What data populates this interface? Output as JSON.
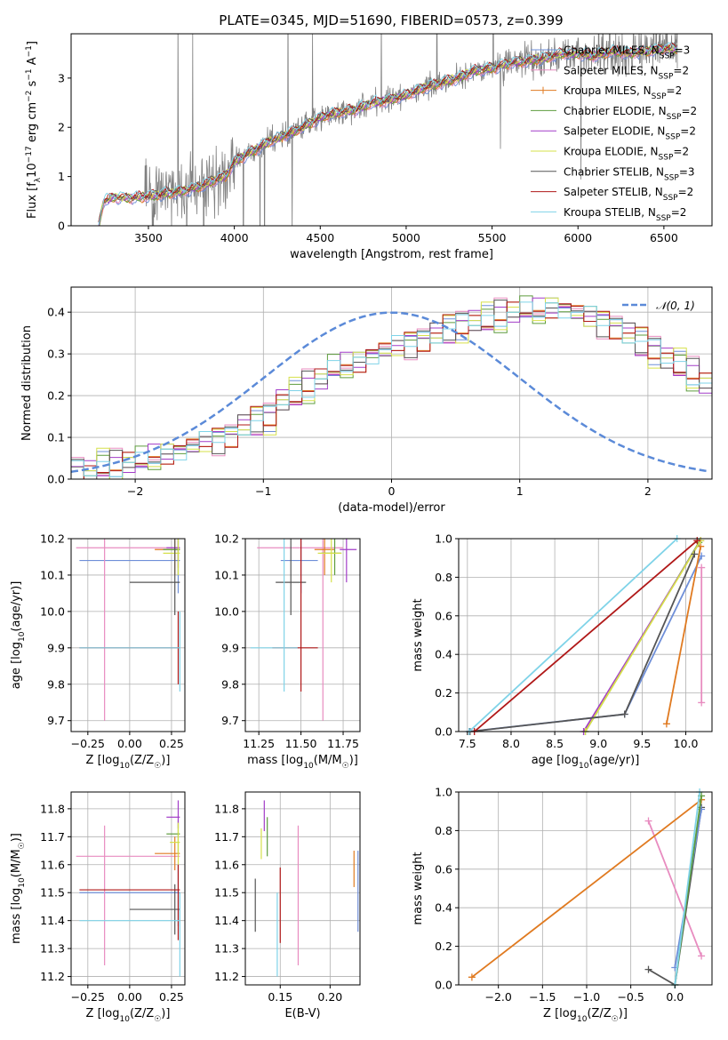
{
  "page_title": "PLATE=0345, MJD=51690, FIBERID=0573, z=0.399",
  "colors": {
    "Chabrier MILES": "#6f8fd8",
    "Salpeter MILES": "#e88cc0",
    "Kroupa MILES": "#e07a20",
    "Chabrier ELODIE": "#5d9c3d",
    "Salpeter ELODIE": "#a23cc8",
    "Kroupa ELODIE": "#d6e04a",
    "Chabrier STELIB": "#555555",
    "Salpeter STELIB": "#b01818",
    "Kroupa STELIB": "#7fd3e8",
    "data": "#808080",
    "gauss": "#5b8ad8"
  },
  "chart_data": [
    {
      "id": "spectrum",
      "type": "line",
      "title": "PLATE=0345, MJD=51690, FIBERID=0573, z=0.399",
      "xlabel": "wavelength [Angstrom, rest frame]",
      "ylabel": "Flux [f_λ 10^-17 erg cm^-2 s^-1 A^-1]",
      "xlim": [
        3050,
        6780
      ],
      "ylim": [
        0,
        3.9
      ],
      "xticks": [
        "3500",
        "4000",
        "4500",
        "5000",
        "5500",
        "6000",
        "6500"
      ],
      "yticks": [
        "0",
        "1",
        "2",
        "3"
      ],
      "grid": false,
      "legend_position": "top-right",
      "legend": [
        "Chabrier MILES, N_SSP=3",
        "Salpeter MILES, N_SSP=2",
        "Kroupa MILES, N_SSP=2",
        "Chabrier ELODIE, N_SSP=2",
        "Salpeter ELODIE, N_SSP=2",
        "Kroupa ELODIE, N_SSP=2",
        "Chabrier STELIB, N_SSP=3",
        "Salpeter STELIB, N_SSP=2",
        "Kroupa STELIB, N_SSP=2"
      ],
      "continuum": {
        "x": [
          3210,
          3240,
          3300,
          3400,
          3500,
          3600,
          3700,
          3800,
          3900,
          3950,
          4000,
          4100,
          4200,
          4300,
          4400,
          4500,
          4600,
          4700,
          4800,
          4900,
          5000,
          5100,
          5200,
          5300,
          5400,
          5500,
          5600,
          5700,
          5800,
          5900,
          6000,
          6100,
          6200,
          6300,
          6400,
          6500,
          6580
        ],
        "y": [
          0,
          0.5,
          0.58,
          0.56,
          0.6,
          0.65,
          0.7,
          0.8,
          0.95,
          1.0,
          1.3,
          1.5,
          1.7,
          1.85,
          2.0,
          2.2,
          2.3,
          2.35,
          2.5,
          2.55,
          2.65,
          2.8,
          2.9,
          3.0,
          3.15,
          3.2,
          3.3,
          3.35,
          3.4,
          3.5,
          3.5,
          3.45,
          3.55,
          3.5,
          3.55,
          3.6,
          3.6
        ]
      }
    },
    {
      "id": "residuals",
      "type": "line",
      "xlabel": "(data-model)/error",
      "ylabel": "Normed distribution",
      "xlim": [
        -2.5,
        2.5
      ],
      "ylim": [
        0,
        0.46
      ],
      "xticks": [
        "−2",
        "−1",
        "0",
        "1",
        "2"
      ],
      "yticks": [
        "0.0",
        "0.1",
        "0.2",
        "0.3",
        "0.4"
      ],
      "grid": true,
      "legend": [
        "𝒩(0, 1)"
      ],
      "legend_position": "top-right",
      "bin_width": 0.1,
      "bin_start": -2.5,
      "hist_base": [
        0.02,
        0.02,
        0.03,
        0.03,
        0.04,
        0.04,
        0.05,
        0.06,
        0.07,
        0.08,
        0.09,
        0.1,
        0.11,
        0.13,
        0.14,
        0.15,
        0.19,
        0.2,
        0.22,
        0.24,
        0.26,
        0.27,
        0.28,
        0.3,
        0.31,
        0.32,
        0.33,
        0.34,
        0.35,
        0.36,
        0.37,
        0.38,
        0.38,
        0.39,
        0.4,
        0.4,
        0.4,
        0.41,
        0.41,
        0.4,
        0.39,
        0.38,
        0.37,
        0.35,
        0.33,
        0.31,
        0.29,
        0.27,
        0.25,
        0.23,
        0.21,
        0.19,
        0.17,
        0.15,
        0.13,
        0.12,
        0.1,
        0.09,
        0.08,
        0.07,
        0.06,
        0.05,
        0.045,
        0.04,
        0.035,
        0.03,
        0.03,
        0.025,
        0.02,
        0.02
      ],
      "gauss_mean": 0,
      "gauss_sigma": 1
    },
    {
      "id": "Z-age",
      "type": "scatter",
      "xlabel": "Z [log10(Z/Z☉)]",
      "ylabel": "age [log10(age/yr)]",
      "xlim": [
        -0.35,
        0.33
      ],
      "ylim": [
        9.67,
        10.2
      ],
      "xticks": [
        "−0.25",
        "0.00",
        "0.25"
      ],
      "yticks": [
        "9.7",
        "9.8",
        "9.9",
        "10.0",
        "10.1",
        "10.2"
      ],
      "grid": true,
      "points": [
        {
          "m": "Chabrier MILES",
          "x": 0.29,
          "y": 10.14,
          "ex": [
            -0.3,
            0.3
          ],
          "ey": [
            10.05,
            10.2
          ]
        },
        {
          "m": "Salpeter MILES",
          "x": -0.15,
          "y": 10.175,
          "ex": [
            -0.32,
            0.3
          ],
          "ey": [
            9.7,
            10.2
          ]
        },
        {
          "m": "Kroupa MILES",
          "x": 0.27,
          "y": 10.17,
          "ex": [
            0.15,
            0.3
          ],
          "ey": [
            10.1,
            10.2
          ]
        },
        {
          "m": "Chabrier ELODIE",
          "x": 0.29,
          "y": 10.17,
          "ex": [
            0.2,
            0.3
          ],
          "ey": [
            10.1,
            10.2
          ]
        },
        {
          "m": "Salpeter ELODIE",
          "x": 0.29,
          "y": 10.175,
          "ex": [
            0.22,
            0.3
          ],
          "ey": [
            10.12,
            10.2
          ]
        },
        {
          "m": "Kroupa ELODIE",
          "x": 0.29,
          "y": 10.16,
          "ex": [
            0.2,
            0.3
          ],
          "ey": [
            10.1,
            10.2
          ]
        },
        {
          "m": "Chabrier STELIB",
          "x": 0.27,
          "y": 10.08,
          "ex": [
            0.0,
            0.3
          ],
          "ey": [
            9.99,
            10.2
          ]
        },
        {
          "m": "Salpeter STELIB",
          "x": 0.29,
          "y": 9.9,
          "ex": [
            -0.3,
            0.3
          ],
          "ey": [
            9.8,
            10.0
          ]
        },
        {
          "m": "Kroupa STELIB",
          "x": 0.3,
          "y": 9.9,
          "ex": [
            -0.3,
            0.3
          ],
          "ey": [
            9.78,
            10.0
          ]
        }
      ]
    },
    {
      "id": "mass-age",
      "type": "scatter",
      "xlabel": "mass [log10(M/M☉)]",
      "ylabel": "",
      "xlim": [
        11.17,
        11.85
      ],
      "ylim": [
        9.67,
        10.2
      ],
      "xticks": [
        "11.25",
        "11.50",
        "11.75"
      ],
      "yticks": [
        "9.7",
        "9.8",
        "9.9",
        "10.0",
        "10.1",
        "10.2"
      ],
      "grid": true,
      "points": [
        {
          "m": "Chabrier MILES",
          "x": 11.5,
          "y": 10.14,
          "ex": [
            11.38,
            11.6
          ],
          "ey": [
            10.05,
            10.2
          ]
        },
        {
          "m": "Salpeter MILES",
          "x": 11.63,
          "y": 10.175,
          "ex": [
            11.24,
            11.75
          ],
          "ey": [
            9.7,
            10.2
          ]
        },
        {
          "m": "Kroupa MILES",
          "x": 11.64,
          "y": 10.17,
          "ex": [
            11.58,
            11.7
          ],
          "ey": [
            10.1,
            10.2
          ]
        },
        {
          "m": "Chabrier ELODIE",
          "x": 11.7,
          "y": 10.16,
          "ex": [
            11.62,
            11.74
          ],
          "ey": [
            10.1,
            10.2
          ]
        },
        {
          "m": "Salpeter ELODIE",
          "x": 11.77,
          "y": 10.17,
          "ex": [
            11.73,
            11.83
          ],
          "ey": [
            10.08,
            10.2
          ]
        },
        {
          "m": "Kroupa ELODIE",
          "x": 11.68,
          "y": 10.16,
          "ex": [
            11.6,
            11.74
          ],
          "ey": [
            10.08,
            10.2
          ]
        },
        {
          "m": "Chabrier STELIB",
          "x": 11.44,
          "y": 10.08,
          "ex": [
            11.35,
            11.53
          ],
          "ey": [
            9.99,
            10.2
          ]
        },
        {
          "m": "Salpeter STELIB",
          "x": 11.5,
          "y": 9.9,
          "ex": [
            11.33,
            11.6
          ],
          "ey": [
            9.78,
            10.2
          ]
        },
        {
          "m": "Kroupa STELIB",
          "x": 11.4,
          "y": 9.9,
          "ex": [
            11.2,
            11.48
          ],
          "ey": [
            9.78,
            10.2
          ]
        }
      ]
    },
    {
      "id": "age-weight",
      "type": "line",
      "xlabel": "age [log10(age/yr)]",
      "ylabel": "mass weight",
      "xlim": [
        7.4,
        10.3
      ],
      "ylim": [
        0,
        1.0
      ],
      "xticks": [
        "7.5",
        "8.0",
        "8.5",
        "9.0",
        "9.5",
        "10.0"
      ],
      "yticks": [
        "0.0",
        "0.2",
        "0.4",
        "0.6",
        "0.8",
        "1.0"
      ],
      "grid": true,
      "series": [
        {
          "m": "Chabrier MILES",
          "x": [
            7.52,
            9.3,
            10.18
          ],
          "y": [
            0.0,
            0.09,
            0.91
          ]
        },
        {
          "m": "Salpeter MILES",
          "x": [
            10.18,
            10.18
          ],
          "y": [
            0.15,
            0.85
          ]
        },
        {
          "m": "Kroupa MILES",
          "x": [
            9.78,
            10.17
          ],
          "y": [
            0.04,
            0.96
          ]
        },
        {
          "m": "Chabrier ELODIE",
          "x": [
            8.85,
            10.15
          ],
          "y": [
            0.0,
            0.98
          ]
        },
        {
          "m": "Salpeter ELODIE",
          "x": [
            8.83,
            10.17
          ],
          "y": [
            0.0,
            0.99
          ]
        },
        {
          "m": "Kroupa ELODIE",
          "x": [
            8.85,
            10.17
          ],
          "y": [
            0.0,
            0.99
          ]
        },
        {
          "m": "Chabrier STELIB",
          "x": [
            7.53,
            9.3,
            10.1
          ],
          "y": [
            0.0,
            0.09,
            0.92
          ]
        },
        {
          "m": "Salpeter STELIB",
          "x": [
            7.58,
            10.13
          ],
          "y": [
            0.0,
            0.99
          ]
        },
        {
          "m": "Kroupa STELIB",
          "x": [
            7.52,
            9.9
          ],
          "y": [
            0.0,
            1.0
          ]
        }
      ]
    },
    {
      "id": "Z-mass",
      "type": "scatter",
      "xlabel": "Z [log10(Z/Z☉)]",
      "ylabel": "mass [log10(M/M☉)]",
      "xlim": [
        -0.35,
        0.33
      ],
      "ylim": [
        11.17,
        11.86
      ],
      "xticks": [
        "−0.25",
        "0.00",
        "0.25"
      ],
      "yticks": [
        "11.2",
        "11.3",
        "11.4",
        "11.5",
        "11.6",
        "11.7",
        "11.8"
      ],
      "grid": true,
      "points": [
        {
          "m": "Chabrier MILES",
          "x": 0.29,
          "y": 11.5,
          "ex": [
            -0.3,
            0.3
          ],
          "ey": [
            11.38,
            11.6
          ]
        },
        {
          "m": "Salpeter MILES",
          "x": -0.15,
          "y": 11.63,
          "ex": [
            -0.32,
            0.3
          ],
          "ey": [
            11.24,
            11.74
          ]
        },
        {
          "m": "Kroupa MILES",
          "x": 0.27,
          "y": 11.64,
          "ex": [
            0.15,
            0.3
          ],
          "ey": [
            11.58,
            11.7
          ]
        },
        {
          "m": "Chabrier ELODIE",
          "x": 0.29,
          "y": 11.71,
          "ex": [
            0.22,
            0.3
          ],
          "ey": [
            11.64,
            11.76
          ]
        },
        {
          "m": "Salpeter ELODIE",
          "x": 0.29,
          "y": 11.77,
          "ex": [
            0.22,
            0.3
          ],
          "ey": [
            11.73,
            11.83
          ]
        },
        {
          "m": "Kroupa ELODIE",
          "x": 0.29,
          "y": 11.68,
          "ex": [
            0.24,
            0.3
          ],
          "ey": [
            11.6,
            11.75
          ]
        },
        {
          "m": "Chabrier STELIB",
          "x": 0.27,
          "y": 11.44,
          "ex": [
            0.0,
            0.3
          ],
          "ey": [
            11.35,
            11.53
          ]
        },
        {
          "m": "Salpeter STELIB",
          "x": 0.29,
          "y": 11.51,
          "ex": [
            -0.3,
            0.3
          ],
          "ey": [
            11.33,
            11.6
          ]
        },
        {
          "m": "Kroupa STELIB",
          "x": 0.3,
          "y": 11.4,
          "ex": [
            -0.3,
            0.3
          ],
          "ey": [
            11.2,
            11.5
          ]
        }
      ]
    },
    {
      "id": "ebv-mass",
      "type": "scatter",
      "xlabel": "E(B-V)",
      "ylabel": "",
      "xlim": [
        0.115,
        0.23
      ],
      "ylim": [
        11.17,
        11.86
      ],
      "xticks": [
        "0.15",
        "0.20"
      ],
      "yticks": [
        "11.2",
        "11.3",
        "11.4",
        "11.5",
        "11.6",
        "11.7",
        "11.8"
      ],
      "grid": true,
      "points": [
        {
          "m": "Chabrier MILES",
          "x": 0.228,
          "y": 11.5,
          "ey": [
            11.36,
            11.65
          ]
        },
        {
          "m": "Salpeter MILES",
          "x": 0.168,
          "y": 11.49,
          "ey": [
            11.24,
            11.74
          ]
        },
        {
          "m": "Kroupa MILES",
          "x": 0.224,
          "y": 11.58,
          "ey": [
            11.52,
            11.65
          ]
        },
        {
          "m": "Chabrier ELODIE",
          "x": 0.137,
          "y": 11.7,
          "ey": [
            11.63,
            11.77
          ]
        },
        {
          "m": "Salpeter ELODIE",
          "x": 0.134,
          "y": 11.77,
          "ey": [
            11.72,
            11.83
          ]
        },
        {
          "m": "Kroupa ELODIE",
          "x": 0.131,
          "y": 11.68,
          "ey": [
            11.62,
            11.73
          ]
        },
        {
          "m": "Chabrier STELIB",
          "x": 0.125,
          "y": 11.45,
          "ey": [
            11.36,
            11.55
          ]
        },
        {
          "m": "Salpeter STELIB",
          "x": 0.15,
          "y": 11.45,
          "ey": [
            11.32,
            11.59
          ]
        },
        {
          "m": "Kroupa STELIB",
          "x": 0.147,
          "y": 11.33,
          "ey": [
            11.2,
            11.5
          ]
        }
      ]
    },
    {
      "id": "Z-weight",
      "type": "line",
      "xlabel": "Z [log10(Z/Z☉)]",
      "ylabel": "mass weight",
      "xlim": [
        -2.45,
        0.42
      ],
      "ylim": [
        0,
        1.0
      ],
      "xticks": [
        "−2.0",
        "−1.5",
        "−1.0",
        "−0.5",
        "0.0"
      ],
      "yticks": [
        "0.0",
        "0.2",
        "0.4",
        "0.6",
        "0.8",
        "1.0"
      ],
      "grid": true,
      "series": [
        {
          "m": "Salpeter MILES",
          "x": [
            -0.3,
            0.3
          ],
          "y": [
            0.85,
            0.15
          ]
        },
        {
          "m": "Kroupa MILES",
          "x": [
            -2.3,
            0.3
          ],
          "y": [
            0.04,
            0.96
          ]
        },
        {
          "m": "Chabrier STELIB",
          "x": [
            -0.3,
            0.0,
            0.3
          ],
          "y": [
            0.08,
            0.0,
            0.92
          ]
        },
        {
          "m": "Chabrier MILES",
          "x": [
            0.0,
            0.3
          ],
          "y": [
            0.09,
            0.91
          ]
        },
        {
          "m": "Chabrier ELODIE",
          "x": [
            0.0,
            0.3
          ],
          "y": [
            0.0,
            0.98
          ]
        },
        {
          "m": "Kroupa STELIB",
          "x": [
            0.0,
            0.28
          ],
          "y": [
            0.0,
            1.0
          ]
        }
      ]
    }
  ]
}
